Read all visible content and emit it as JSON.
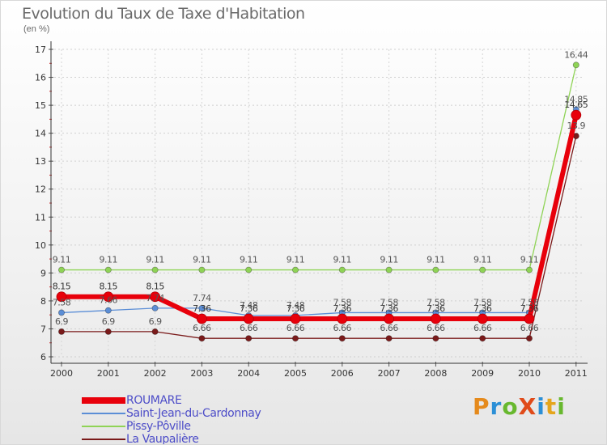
{
  "title": "Evolution du Taux de Taxe d'Habitation",
  "unit_label": "(en %)",
  "logo_text": "ProXiti",
  "chart_data": {
    "type": "line",
    "title": "Evolution du Taux de Taxe d'Habitation",
    "ylabel": "(en %)",
    "xlabel": "",
    "ylim": [
      6,
      17
    ],
    "yticks": [
      "6",
      "7",
      "8",
      "9",
      "10",
      "11",
      "12",
      "13",
      "14",
      "15",
      "16",
      "17"
    ],
    "categories": [
      "2000",
      "2001",
      "2002",
      "2003",
      "2004",
      "2005",
      "2006",
      "2007",
      "2008",
      "2009",
      "2010",
      "2011"
    ],
    "series": [
      {
        "name": "ROUMARE",
        "color": "#e8000b",
        "values": [
          8.15,
          8.15,
          8.15,
          7.36,
          7.36,
          7.36,
          7.36,
          7.36,
          7.36,
          7.36,
          7.36,
          14.65
        ],
        "labels": [
          "8.15",
          "8.15",
          "8.15",
          "7.36",
          "7.36",
          "7.36",
          "7.36",
          "7.36",
          "7.36",
          "7.36",
          "7.36",
          "14.65"
        ]
      },
      {
        "name": "Saint-Jean-du-Cardonnay",
        "color": "#5b8ed6",
        "values": [
          7.58,
          7.66,
          7.74,
          7.74,
          7.48,
          7.48,
          7.58,
          7.58,
          7.58,
          7.58,
          7.58,
          14.85
        ],
        "labels": [
          "7.58",
          "7.66",
          "7.74",
          "7.74",
          "7.48",
          "7.48",
          "7.58",
          "7.58",
          "7.58",
          "7.58",
          "7.58",
          "14.85"
        ]
      },
      {
        "name": "Pissy-Pôville",
        "color": "#8fd356",
        "values": [
          9.11,
          9.11,
          9.11,
          9.11,
          9.11,
          9.11,
          9.11,
          9.11,
          9.11,
          9.11,
          9.11,
          16.44
        ],
        "labels": [
          "9.11",
          "9.11",
          "9.11",
          "9.11",
          "9.11",
          "9.11",
          "9.11",
          "9.11",
          "9.11",
          "9.11",
          "9.11",
          "16.44"
        ]
      },
      {
        "name": "La Vaupalière",
        "color": "#7a1a1a",
        "values": [
          6.9,
          6.9,
          6.9,
          6.66,
          6.66,
          6.66,
          6.66,
          6.66,
          6.66,
          6.66,
          6.66,
          13.9
        ],
        "labels": [
          "6.9",
          "6.9",
          "6.9",
          "6.66",
          "6.66",
          "6.66",
          "6.66",
          "6.66",
          "6.66",
          "6.66",
          "6.66",
          "13.9"
        ]
      }
    ]
  }
}
